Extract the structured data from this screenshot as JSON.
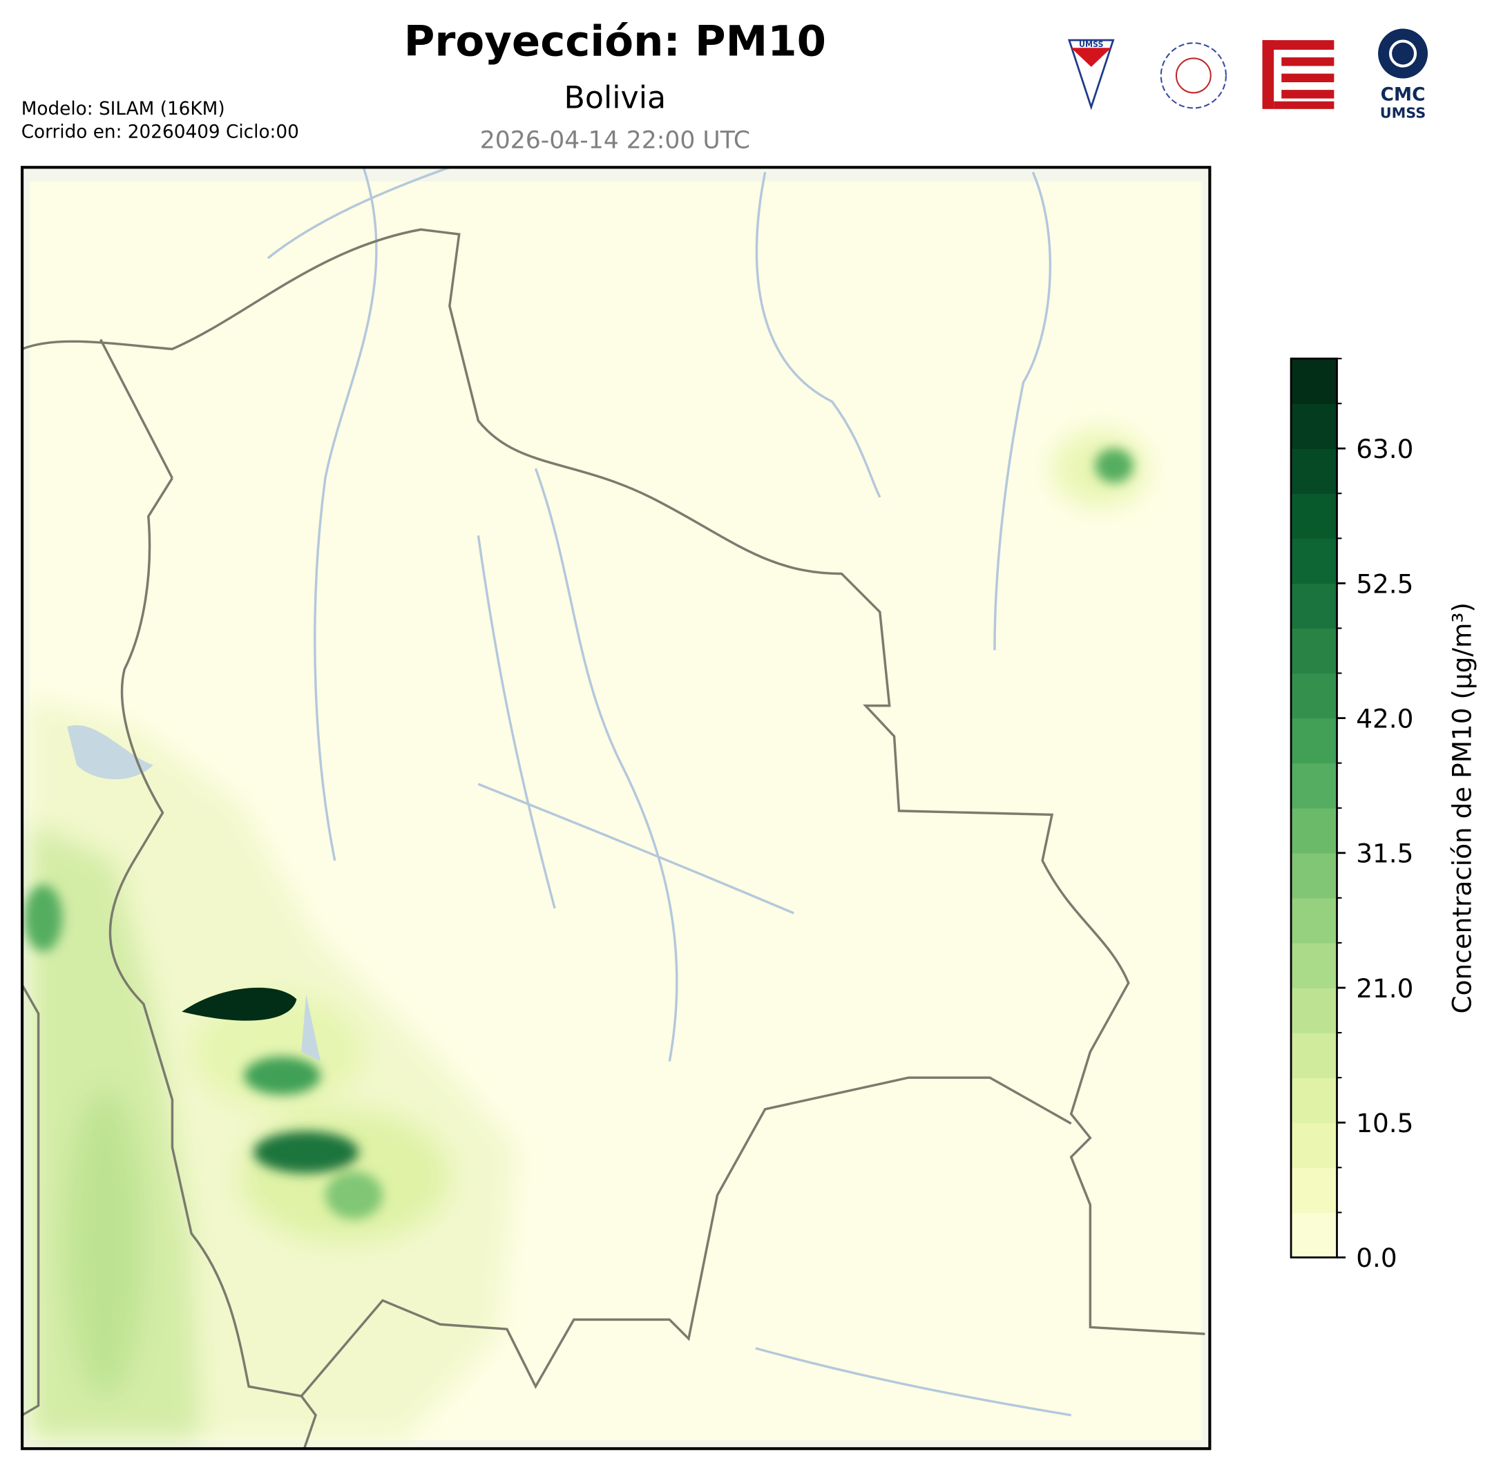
{
  "header": {
    "title": "Proyección: PM10",
    "subtitle": "Bolivia",
    "date": "2026-04-14 22:00 UTC",
    "model": "Modelo: SILAM (16KM)",
    "run": "Corrido en: 20260409 Ciclo:00"
  },
  "logos": {
    "first": "UMSS",
    "last_top": "CMC",
    "last_bottom": "UMSS"
  },
  "colorbar": {
    "label": "Concentración de PM10 (µg/m³)",
    "lim": [
      0,
      70
    ],
    "levels": [
      0,
      3.5,
      7,
      10.5,
      14,
      17.5,
      21,
      24.5,
      28,
      31.5,
      35,
      38.5,
      42,
      45.5,
      49,
      52.5,
      56,
      59.5,
      63,
      66.5,
      70
    ],
    "colors": [
      "#ffffe5",
      "#fbfdd4",
      "#f4fac0",
      "#ebf6b0",
      "#dff2a5",
      "#cfeb9b",
      "#bde392",
      "#aadb88",
      "#95d17e",
      "#80c674",
      "#6aba6a",
      "#55ad61",
      "#41a056",
      "#34914d",
      "#288345",
      "#1b743d",
      "#0e6634",
      "#085a2d",
      "#054a25",
      "#033c1e",
      "#022d17"
    ],
    "ticks": [
      {
        "value": 0,
        "label": "0.0"
      },
      {
        "value": 10.5,
        "label": "10.5"
      },
      {
        "value": 21,
        "label": "21.0"
      },
      {
        "value": 31.5,
        "label": "31.5"
      },
      {
        "value": 42,
        "label": "42.0"
      },
      {
        "value": 52.5,
        "label": "52.5"
      },
      {
        "value": 63,
        "label": "63.0"
      }
    ]
  }
}
